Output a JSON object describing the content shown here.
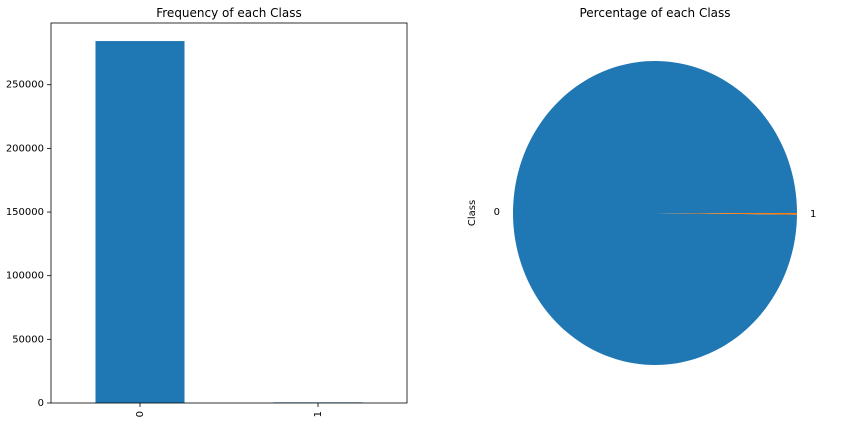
{
  "chart_data": [
    {
      "type": "bar",
      "title": "Frequency of each Class",
      "categories": [
        "0",
        "1"
      ],
      "values": [
        284315,
        492
      ],
      "xlabel": "",
      "ylabel": "",
      "ylim": [
        0,
        298500
      ],
      "yticks": [
        0,
        50000,
        100000,
        150000,
        200000,
        250000
      ],
      "ytick_labels": [
        "0",
        "50000",
        "100000",
        "150000",
        "200000",
        "250000"
      ],
      "grid": false,
      "bar_color": "#1f77b4"
    },
    {
      "type": "pie",
      "title": "Percentage of each Class",
      "labels": [
        "0",
        "1"
      ],
      "values": [
        284315,
        492
      ],
      "ylabel": "Class",
      "colors": [
        "#1f77b4",
        "#ff7f0e"
      ]
    }
  ]
}
